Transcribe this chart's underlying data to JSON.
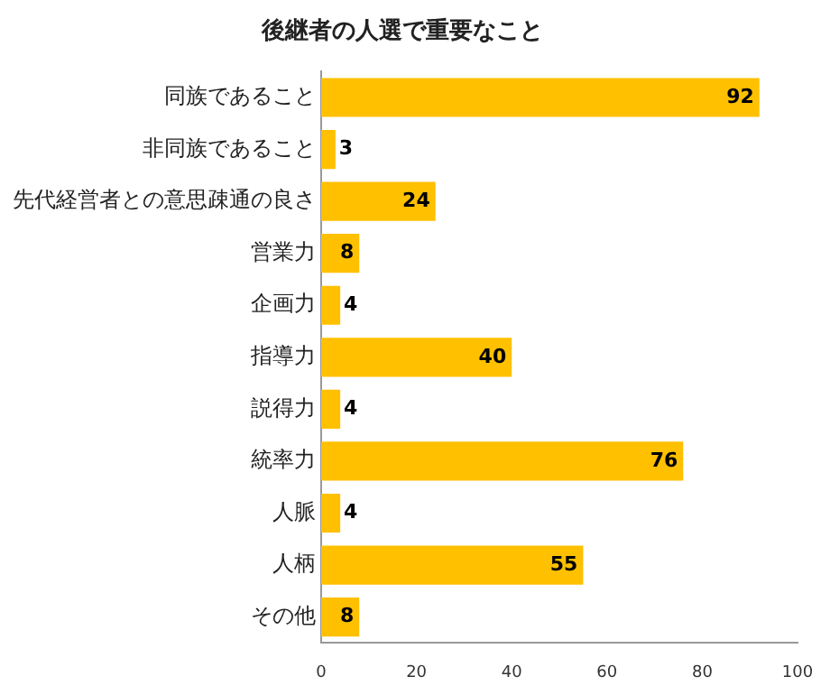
{
  "chart_data": {
    "type": "bar",
    "orientation": "horizontal",
    "title": "後継者の人選で重要なこと",
    "categories": [
      "同族であること",
      "非同族であること",
      "先代経営者との意思疎通の良さ",
      "営業力",
      "企画力",
      "指導力",
      "説得力",
      "統率力",
      "人脈",
      "人柄",
      "その他"
    ],
    "values": [
      92,
      3,
      24,
      8,
      4,
      40,
      4,
      76,
      4,
      55,
      8
    ],
    "color": "#ffc000",
    "xlim": [
      0,
      100
    ],
    "xticks": [
      0,
      20,
      40,
      60,
      80,
      100
    ],
    "grid": false,
    "legend": false,
    "data_labels": true
  }
}
